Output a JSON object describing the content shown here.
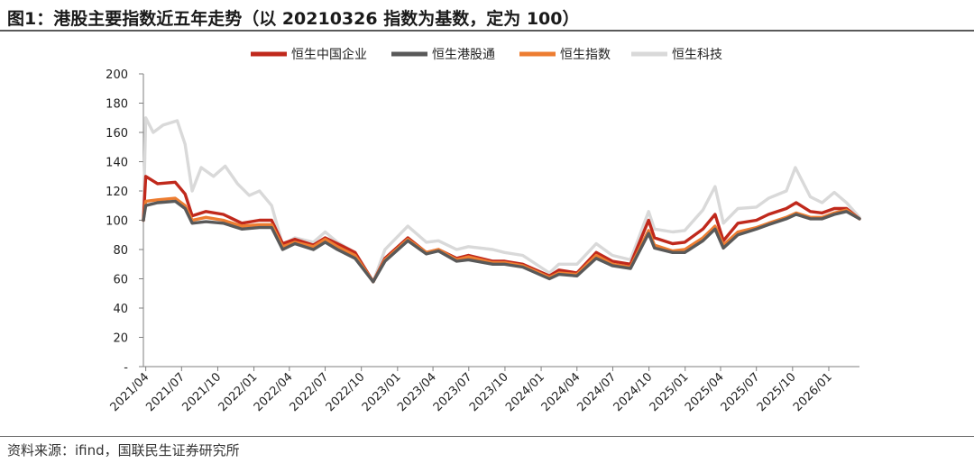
{
  "header": {
    "title": "图1：港股主要指数近五年走势（以 20210326 指数为基数，定为 100）"
  },
  "footer": {
    "source": "资料来源：ifind，国联民生证券研究所"
  },
  "chart_data": {
    "type": "line",
    "xlabel": "",
    "ylabel": "",
    "ylim": [
      0,
      200
    ],
    "yticks": [
      "-",
      "20",
      "40",
      "60",
      "80",
      "100",
      "120",
      "140",
      "160",
      "180",
      "200"
    ],
    "ytick_values": [
      0,
      20,
      40,
      60,
      80,
      100,
      120,
      140,
      160,
      180,
      200
    ],
    "xlim": [
      "2021-03-26",
      "2026-03-20"
    ],
    "xtick_labels": [
      "2021/04",
      "2021/07",
      "2021/10",
      "2022/01",
      "2022/04",
      "2022/07",
      "2022/10",
      "2023/01",
      "2023/04",
      "2023/07",
      "2023/10",
      "2024/01",
      "2024/04",
      "2024/07",
      "2024/10",
      "2025/01",
      "2025/04",
      "2025/07",
      "2025/10",
      "2026/01"
    ],
    "xtick_dates": [
      "2021-04-01",
      "2021-07-01",
      "2021-10-01",
      "2022-01-01",
      "2022-04-01",
      "2022-07-01",
      "2022-10-01",
      "2023-01-01",
      "2023-04-01",
      "2023-07-01",
      "2023-10-01",
      "2024-01-01",
      "2024-04-01",
      "2024-07-01",
      "2024-10-01",
      "2025-01-01",
      "2025-04-01",
      "2025-07-01",
      "2025-10-01",
      "2026-01-01"
    ],
    "grid": false,
    "legend_position": "top-center",
    "series": [
      {
        "name": "恒生中国企业",
        "color": "#c0291c",
        "points": [
          [
            "2021-03-26",
            100
          ],
          [
            "2021-04-01",
            130
          ],
          [
            "2021-05-01",
            125
          ],
          [
            "2021-06-15",
            126
          ],
          [
            "2021-07-10",
            118
          ],
          [
            "2021-07-28",
            103
          ],
          [
            "2021-09-01",
            106
          ],
          [
            "2021-10-15",
            104
          ],
          [
            "2021-12-01",
            98
          ],
          [
            "2022-01-15",
            100
          ],
          [
            "2022-02-15",
            100
          ],
          [
            "2022-03-15",
            84
          ],
          [
            "2022-04-15",
            87
          ],
          [
            "2022-06-01",
            83
          ],
          [
            "2022-07-01",
            88
          ],
          [
            "2022-08-01",
            84
          ],
          [
            "2022-09-15",
            78
          ],
          [
            "2022-10-31",
            58
          ],
          [
            "2022-11-30",
            74
          ],
          [
            "2023-01-27",
            88
          ],
          [
            "2023-03-15",
            78
          ],
          [
            "2023-04-15",
            80
          ],
          [
            "2023-05-31",
            74
          ],
          [
            "2023-06-30",
            76
          ],
          [
            "2023-08-31",
            72
          ],
          [
            "2023-09-30",
            72
          ],
          [
            "2023-11-15",
            70
          ],
          [
            "2024-01-22",
            62
          ],
          [
            "2024-02-15",
            66
          ],
          [
            "2024-04-01",
            64
          ],
          [
            "2024-05-20",
            78
          ],
          [
            "2024-06-30",
            72
          ],
          [
            "2024-08-15",
            70
          ],
          [
            "2024-09-30",
            100
          ],
          [
            "2024-10-15",
            88
          ],
          [
            "2024-11-30",
            84
          ],
          [
            "2024-12-31",
            85
          ],
          [
            "2025-02-15",
            94
          ],
          [
            "2025-03-18",
            104
          ],
          [
            "2025-04-08",
            86
          ],
          [
            "2025-05-15",
            98
          ],
          [
            "2025-07-01",
            100
          ],
          [
            "2025-08-01",
            104
          ],
          [
            "2025-09-15",
            108
          ],
          [
            "2025-10-10",
            112
          ],
          [
            "2025-11-15",
            106
          ],
          [
            "2025-12-15",
            105
          ],
          [
            "2026-01-15",
            108
          ],
          [
            "2026-02-15",
            108
          ],
          [
            "2026-03-20",
            101
          ]
        ]
      },
      {
        "name": "恒生港股通",
        "color": "#595959",
        "points": [
          [
            "2021-03-26",
            100
          ],
          [
            "2021-04-01",
            110
          ],
          [
            "2021-05-01",
            112
          ],
          [
            "2021-06-15",
            113
          ],
          [
            "2021-07-10",
            108
          ],
          [
            "2021-07-28",
            98
          ],
          [
            "2021-09-01",
            99
          ],
          [
            "2021-10-15",
            98
          ],
          [
            "2021-12-01",
            94
          ],
          [
            "2022-01-15",
            95
          ],
          [
            "2022-02-15",
            95
          ],
          [
            "2022-03-15",
            80
          ],
          [
            "2022-04-15",
            84
          ],
          [
            "2022-06-01",
            80
          ],
          [
            "2022-07-01",
            85
          ],
          [
            "2022-08-01",
            80
          ],
          [
            "2022-09-15",
            74
          ],
          [
            "2022-10-31",
            58
          ],
          [
            "2022-11-30",
            72
          ],
          [
            "2023-01-27",
            86
          ],
          [
            "2023-03-15",
            77
          ],
          [
            "2023-04-15",
            79
          ],
          [
            "2023-05-31",
            72
          ],
          [
            "2023-06-30",
            73
          ],
          [
            "2023-08-31",
            70
          ],
          [
            "2023-09-30",
            70
          ],
          [
            "2023-11-15",
            68
          ],
          [
            "2024-01-22",
            60
          ],
          [
            "2024-02-15",
            63
          ],
          [
            "2024-04-01",
            62
          ],
          [
            "2024-05-20",
            74
          ],
          [
            "2024-06-30",
            69
          ],
          [
            "2024-08-15",
            67
          ],
          [
            "2024-09-30",
            91
          ],
          [
            "2024-10-15",
            81
          ],
          [
            "2024-11-30",
            78
          ],
          [
            "2024-12-31",
            78
          ],
          [
            "2025-02-15",
            86
          ],
          [
            "2025-03-18",
            94
          ],
          [
            "2025-04-08",
            81
          ],
          [
            "2025-05-15",
            90
          ],
          [
            "2025-07-01",
            94
          ],
          [
            "2025-08-01",
            97
          ],
          [
            "2025-09-15",
            101
          ],
          [
            "2025-10-10",
            104
          ],
          [
            "2025-11-15",
            101
          ],
          [
            "2025-12-15",
            101
          ],
          [
            "2026-01-15",
            104
          ],
          [
            "2026-02-15",
            106
          ],
          [
            "2026-03-20",
            101
          ]
        ]
      },
      {
        "name": "恒生指数",
        "color": "#ed7d31",
        "points": [
          [
            "2021-03-26",
            100
          ],
          [
            "2021-04-01",
            113
          ],
          [
            "2021-05-01",
            114
          ],
          [
            "2021-06-15",
            115
          ],
          [
            "2021-07-10",
            110
          ],
          [
            "2021-07-28",
            100
          ],
          [
            "2021-09-01",
            102
          ],
          [
            "2021-10-15",
            100
          ],
          [
            "2021-12-01",
            96
          ],
          [
            "2022-01-15",
            97
          ],
          [
            "2022-02-15",
            97
          ],
          [
            "2022-03-15",
            82
          ],
          [
            "2022-04-15",
            85
          ],
          [
            "2022-06-01",
            82
          ],
          [
            "2022-07-01",
            87
          ],
          [
            "2022-08-01",
            82
          ],
          [
            "2022-09-15",
            76
          ],
          [
            "2022-10-31",
            58
          ],
          [
            "2022-11-30",
            73
          ],
          [
            "2023-01-27",
            87
          ],
          [
            "2023-03-15",
            78
          ],
          [
            "2023-04-15",
            80
          ],
          [
            "2023-05-31",
            73
          ],
          [
            "2023-06-30",
            75
          ],
          [
            "2023-08-31",
            71
          ],
          [
            "2023-09-30",
            71
          ],
          [
            "2023-11-15",
            69
          ],
          [
            "2024-01-22",
            61
          ],
          [
            "2024-02-15",
            64
          ],
          [
            "2024-04-01",
            63
          ],
          [
            "2024-05-20",
            76
          ],
          [
            "2024-06-30",
            70
          ],
          [
            "2024-08-15",
            68
          ],
          [
            "2024-09-30",
            93
          ],
          [
            "2024-10-15",
            83
          ],
          [
            "2024-11-30",
            79
          ],
          [
            "2024-12-31",
            80
          ],
          [
            "2025-02-15",
            88
          ],
          [
            "2025-03-18",
            96
          ],
          [
            "2025-04-08",
            83
          ],
          [
            "2025-05-15",
            92
          ],
          [
            "2025-07-01",
            95
          ],
          [
            "2025-08-01",
            98
          ],
          [
            "2025-09-15",
            102
          ],
          [
            "2025-10-10",
            105
          ],
          [
            "2025-11-15",
            102
          ],
          [
            "2025-12-15",
            102
          ],
          [
            "2026-01-15",
            105
          ],
          [
            "2026-02-15",
            107
          ],
          [
            "2026-03-20",
            101
          ]
        ]
      },
      {
        "name": "恒生科技",
        "color": "#d9d9d9",
        "points": [
          [
            "2021-03-26",
            100
          ],
          [
            "2021-04-01",
            170
          ],
          [
            "2021-04-20",
            160
          ],
          [
            "2021-05-15",
            165
          ],
          [
            "2021-06-20",
            168
          ],
          [
            "2021-07-10",
            152
          ],
          [
            "2021-07-28",
            120
          ],
          [
            "2021-08-20",
            136
          ],
          [
            "2021-09-20",
            130
          ],
          [
            "2021-10-20",
            137
          ],
          [
            "2021-11-20",
            125
          ],
          [
            "2021-12-20",
            117
          ],
          [
            "2022-01-15",
            120
          ],
          [
            "2022-02-15",
            110
          ],
          [
            "2022-03-15",
            83
          ],
          [
            "2022-04-15",
            88
          ],
          [
            "2022-06-01",
            85
          ],
          [
            "2022-07-01",
            92
          ],
          [
            "2022-08-01",
            85
          ],
          [
            "2022-09-15",
            78
          ],
          [
            "2022-10-31",
            58
          ],
          [
            "2022-11-30",
            80
          ],
          [
            "2023-01-27",
            96
          ],
          [
            "2023-03-15",
            85
          ],
          [
            "2023-04-15",
            86
          ],
          [
            "2023-05-31",
            80
          ],
          [
            "2023-06-30",
            82
          ],
          [
            "2023-08-31",
            80
          ],
          [
            "2023-09-30",
            78
          ],
          [
            "2023-11-15",
            76
          ],
          [
            "2024-01-22",
            64
          ],
          [
            "2024-02-15",
            70
          ],
          [
            "2024-04-01",
            70
          ],
          [
            "2024-05-20",
            84
          ],
          [
            "2024-06-30",
            76
          ],
          [
            "2024-08-15",
            73
          ],
          [
            "2024-09-30",
            106
          ],
          [
            "2024-10-15",
            94
          ],
          [
            "2024-11-30",
            92
          ],
          [
            "2024-12-31",
            93
          ],
          [
            "2025-02-15",
            107
          ],
          [
            "2025-03-18",
            123
          ],
          [
            "2025-04-08",
            98
          ],
          [
            "2025-05-15",
            108
          ],
          [
            "2025-07-01",
            109
          ],
          [
            "2025-08-01",
            115
          ],
          [
            "2025-09-15",
            120
          ],
          [
            "2025-10-08",
            136
          ],
          [
            "2025-11-15",
            116
          ],
          [
            "2025-12-15",
            112
          ],
          [
            "2026-01-15",
            119
          ],
          [
            "2026-02-15",
            112
          ],
          [
            "2026-03-20",
            102
          ]
        ]
      }
    ]
  }
}
